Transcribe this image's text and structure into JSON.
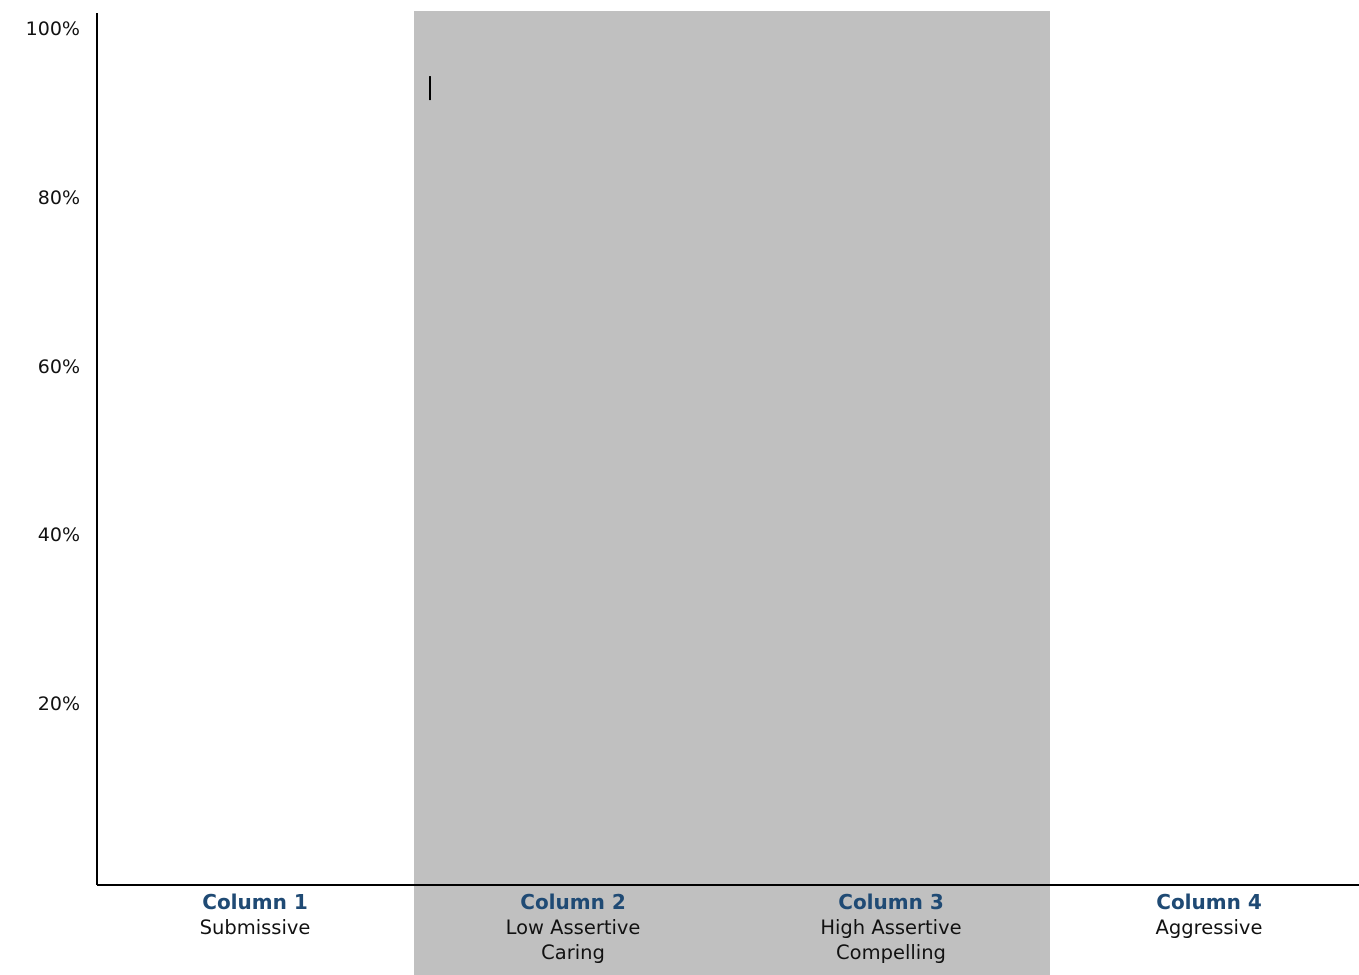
{
  "chart_data": {
    "type": "bar",
    "categories": [
      "Column 1",
      "Column 2",
      "Column 3",
      "Column 4"
    ],
    "category_descriptions": [
      [
        "Submissive"
      ],
      [
        "Low Assertive",
        "Caring"
      ],
      [
        "High Assertive",
        "Compelling"
      ],
      [
        "Aggressive"
      ]
    ],
    "highlighted_columns": [
      "Column 2",
      "Column 3"
    ],
    "values": [
      0,
      0,
      0,
      0
    ],
    "marker": {
      "category": "Column 2",
      "value": 93
    },
    "ylim": [
      0,
      100
    ],
    "yticks": [
      "20%",
      "40%",
      "60%",
      "80%",
      "100%"
    ],
    "title": "",
    "xlabel": "",
    "ylabel": "",
    "grid": false,
    "colors": {
      "highlight_band": "#c0c0c0",
      "axis": "#000000",
      "column_title": "#1f4a74",
      "text": "#111111"
    }
  }
}
